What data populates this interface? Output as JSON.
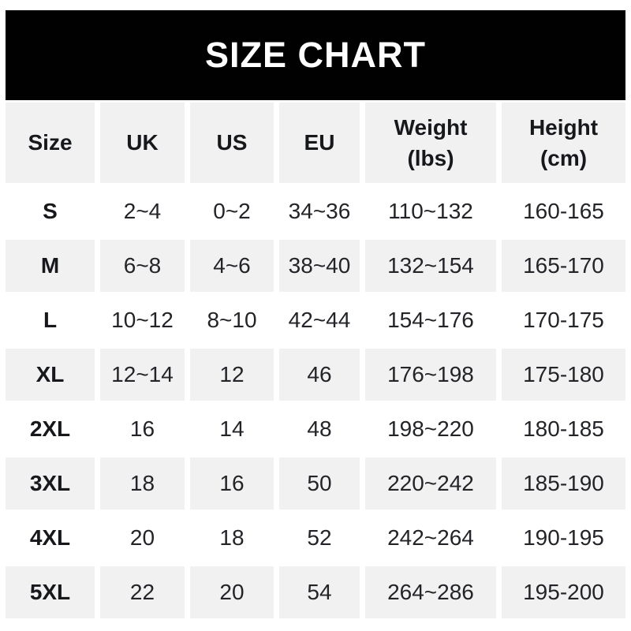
{
  "banner": {
    "title": "SIZE CHART"
  },
  "colors": {
    "banner_bg": "#010101",
    "banner_text": "#ffffff",
    "stripe_bg": "#f1f1f2",
    "row_bg": "#ffffff",
    "text": "#222428",
    "bold_text": "#17181b",
    "page_bg": "#ffffff"
  },
  "chart_data": {
    "type": "table",
    "title": "SIZE CHART",
    "columns": [
      {
        "line1": "Size",
        "line2": ""
      },
      {
        "line1": "UK",
        "line2": ""
      },
      {
        "line1": "US",
        "line2": ""
      },
      {
        "line1": "EU",
        "line2": ""
      },
      {
        "line1": "Weight",
        "line2": "(lbs)"
      },
      {
        "line1": "Height",
        "line2": "(cm)"
      }
    ],
    "rows": [
      [
        "S",
        "2~4",
        "0~2",
        "34~36",
        "110~132",
        "160-165"
      ],
      [
        "M",
        "6~8",
        "4~6",
        "38~40",
        "132~154",
        "165-170"
      ],
      [
        "L",
        "10~12",
        "8~10",
        "42~44",
        "154~176",
        "170-175"
      ],
      [
        "XL",
        "12~14",
        "12",
        "46",
        "176~198",
        "175-180"
      ],
      [
        "2XL",
        "16",
        "14",
        "48",
        "198~220",
        "180-185"
      ],
      [
        "3XL",
        "18",
        "16",
        "50",
        "220~242",
        "185-190"
      ],
      [
        "4XL",
        "20",
        "18",
        "52",
        "242~264",
        "190-195"
      ],
      [
        "5XL",
        "22",
        "20",
        "54",
        "264~286",
        "195-200"
      ]
    ],
    "layout": {
      "striped_rows": "even rows gray, odd rows white",
      "header_background": "gray",
      "grid": "cell gaps, no borders"
    }
  }
}
